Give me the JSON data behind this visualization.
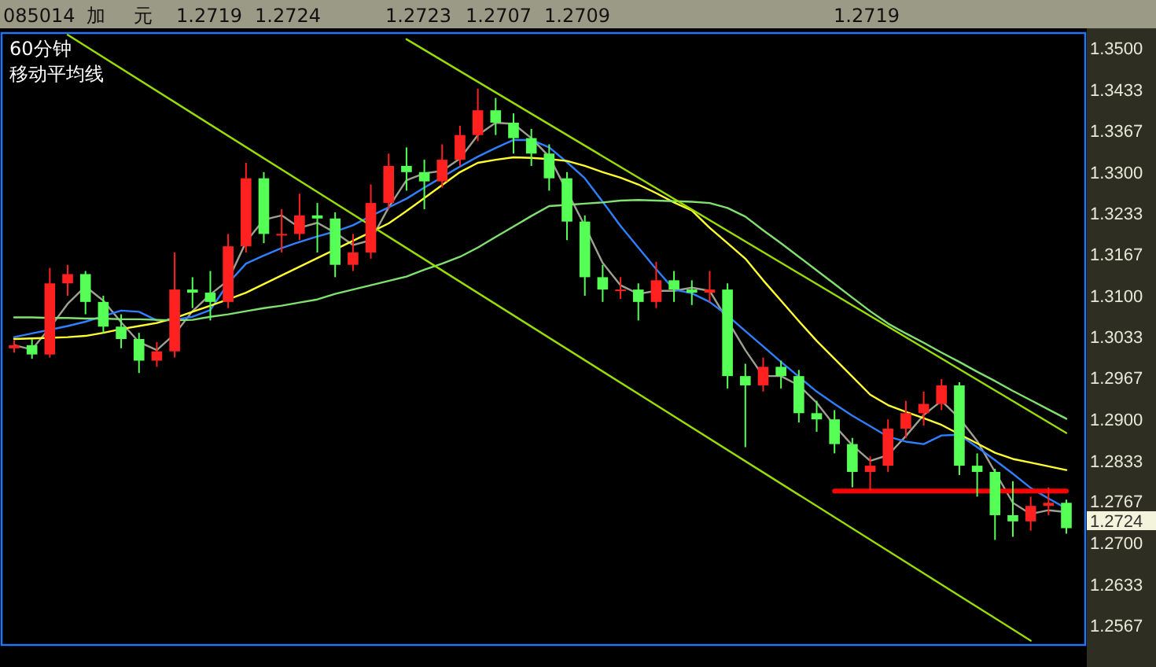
{
  "chart_data": {
    "type": "candlestick",
    "title": "60分钟",
    "subtitle": "移动平均线",
    "annotations": [
      "085014",
      "加",
      "元",
      "1.2719",
      "1.2724",
      "1.2723",
      "1.2707",
      "1.2709",
      "1.2719",
      "1.2724"
    ],
    "categories": [
      null,
      null,
      null,
      null,
      null,
      null,
      null,
      null,
      null,
      null,
      null,
      null,
      null,
      null,
      null,
      null,
      null,
      null,
      null,
      null,
      null,
      null,
      null,
      null,
      null,
      null,
      null,
      null,
      null,
      null,
      null,
      null,
      null,
      null,
      null,
      null,
      null,
      null,
      null,
      null,
      null,
      null,
      null,
      null,
      null,
      null,
      null,
      null,
      null,
      null,
      null,
      null,
      null,
      null,
      null,
      null,
      null,
      null,
      null,
      null
    ],
    "ylim": [
      1.2535,
      1.3525
    ],
    "yticks": [
      {
        "value": 1.35,
        "label": "1.3500"
      },
      {
        "value": 1.3433,
        "label": "1.3433"
      },
      {
        "value": 1.3367,
        "label": "1.3367"
      },
      {
        "value": 1.33,
        "label": "1.3300"
      },
      {
        "value": 1.3233,
        "label": "1.3233"
      },
      {
        "value": 1.3167,
        "label": "1.3167"
      },
      {
        "value": 1.31,
        "label": "1.3100"
      },
      {
        "value": 1.3033,
        "label": "1.3033"
      },
      {
        "value": 1.2967,
        "label": "1.2967"
      },
      {
        "value": 1.29,
        "label": "1.2900"
      },
      {
        "value": 1.2833,
        "label": "1.2833"
      },
      {
        "value": 1.2767,
        "label": "1.2767"
      },
      {
        "value": 1.27,
        "label": "1.2700"
      },
      {
        "value": 1.2633,
        "label": "1.2633"
      },
      {
        "value": 1.2567,
        "label": "1.2567"
      }
    ],
    "grid": false,
    "series": [
      {
        "type": "line",
        "color": "#a0a090",
        "values": [
          1.302,
          1.3013,
          1.3048,
          1.3087,
          1.3115,
          1.3092,
          1.3057,
          1.3025,
          1.3012,
          1.3038,
          1.3075,
          1.3102,
          1.3125,
          1.3187,
          1.3223,
          1.323,
          1.321,
          1.3218,
          1.3202,
          1.3182,
          1.319,
          1.3243,
          1.3287,
          1.3298,
          1.3302,
          1.3322,
          1.336,
          1.338,
          1.3378,
          1.3355,
          1.3325,
          null,
          1.3213,
          1.3153,
          1.3117,
          1.3103,
          1.3108,
          1.3108,
          1.3113,
          1.3108,
          null,
          1.3012,
          1.297,
          1.297,
          1.2955,
          1.2927,
          1.289,
          1.2858,
          1.2833,
          1.2842,
          1.2873,
          1.2907,
          1.293,
          1.2902,
          1.2865,
          null,
          1.2765,
          1.2747,
          1.2753,
          1.275
        ]
      },
      {
        "type": "line",
        "color": "#2f7fff",
        "values": [
          1.3033,
          1.3039,
          1.3045,
          1.3051,
          1.3058,
          1.3067,
          1.3076,
          1.3074,
          1.306,
          1.3061,
          1.3066,
          1.3077,
          1.312,
          1.3152,
          1.3165,
          1.3177,
          1.3187,
          1.3196,
          1.3204,
          1.3214,
          1.3229,
          1.3243,
          1.3257,
          1.3275,
          1.3292,
          1.3309,
          1.3325,
          1.3339,
          1.3352,
          1.3352,
          1.334,
          1.3316,
          1.329,
          1.3252,
          1.3213,
          1.3178,
          1.3143,
          1.311,
          1.3104,
          1.309,
          1.3068,
          1.3043,
          1.3018,
          1.2993,
          1.2969,
          1.2945,
          1.2925,
          1.2906,
          1.2889,
          1.2872,
          1.2864,
          1.286,
          1.2874,
          1.2875,
          1.2855,
          1.2834,
          1.2812,
          1.2789,
          1.2772,
          1.2756
        ]
      },
      {
        "type": "line",
        "color": "#ffff30",
        "values": [
          1.303,
          1.3031,
          1.3032,
          1.3033,
          1.3035,
          1.304,
          1.3046,
          1.3051,
          1.3056,
          1.3064,
          1.3074,
          1.3084,
          1.3094,
          1.3105,
          1.3119,
          1.3133,
          1.3147,
          1.3161,
          1.3175,
          1.3189,
          1.3203,
          1.3217,
          1.3237,
          1.3258,
          1.3279,
          1.33,
          1.3315,
          1.332,
          1.3324,
          1.3323,
          1.3321,
          1.3318,
          1.331,
          1.33,
          1.3291,
          1.328,
          1.3266,
          1.3251,
          1.3238,
          1.321,
          1.3185,
          1.316,
          1.3125,
          1.3092,
          1.3059,
          1.3027,
          1.2998,
          1.2969,
          1.294,
          1.2923,
          1.2912,
          1.2902,
          1.2891,
          1.2876,
          1.2861,
          1.2846,
          1.2836,
          1.283,
          1.2824,
          1.2818
        ]
      },
      {
        "type": "line",
        "color": "#80e070",
        "values": [
          1.3065,
          1.3065,
          1.3064,
          1.3064,
          1.3063,
          1.3063,
          1.3062,
          1.3062,
          1.3061,
          1.306,
          1.3061,
          1.3066,
          1.307,
          1.3075,
          1.308,
          1.3084,
          1.3089,
          1.3094,
          1.3103,
          1.311,
          1.3117,
          1.3124,
          1.3131,
          1.3142,
          1.3152,
          1.3163,
          1.3178,
          1.3195,
          1.3212,
          1.3229,
          1.3245,
          1.3247,
          1.3249,
          1.3251,
          1.3254,
          1.3255,
          1.3254,
          1.3253,
          1.3252,
          1.325,
          1.3242,
          1.3228,
          1.3206,
          1.3185,
          1.3163,
          1.3141,
          1.3119,
          1.3097,
          1.3075,
          1.3055,
          1.3039,
          1.3024,
          1.3008,
          1.2993,
          1.2977,
          1.2962,
          1.2946,
          1.2931,
          1.2916,
          1.2901
        ]
      },
      {
        "type": "line",
        "color": "#99dd00",
        "values": [
          null,
          null,
          null,
          null,
          null,
          null,
          null,
          null,
          null,
          null,
          null,
          null,
          null,
          null,
          null,
          null,
          null,
          null,
          null,
          null,
          null,
          null,
          1.3515,
          null,
          null,
          null,
          null,
          null,
          null,
          null,
          null,
          null,
          null,
          null,
          null,
          null,
          null,
          null,
          null,
          null,
          null,
          null,
          null,
          null,
          null,
          null,
          null,
          null,
          null,
          null,
          null,
          null,
          null,
          null,
          null,
          null,
          null,
          null,
          null,
          1.2878
        ]
      },
      {
        "type": "line",
        "color": "#99dd00",
        "values": [
          null,
          null,
          null,
          1.3522,
          null,
          null,
          null,
          null,
          null,
          null,
          null,
          null,
          null,
          null,
          null,
          null,
          null,
          null,
          null,
          null,
          null,
          null,
          null,
          null,
          null,
          null,
          null,
          null,
          null,
          null,
          null,
          null,
          null,
          null,
          null,
          null,
          null,
          null,
          null,
          null,
          null,
          null,
          null,
          null,
          null,
          null,
          null,
          null,
          null,
          null,
          null,
          null,
          null,
          null,
          null,
          null,
          null,
          1.2542,
          null,
          null
        ]
      },
      {
        "type": "line",
        "color": "#ff0000",
        "values": [
          null,
          null,
          null,
          null,
          null,
          null,
          null,
          null,
          null,
          null,
          null,
          null,
          null,
          null,
          null,
          null,
          null,
          null,
          null,
          null,
          null,
          null,
          null,
          null,
          null,
          null,
          null,
          null,
          null,
          null,
          null,
          null,
          null,
          null,
          null,
          null,
          null,
          null,
          null,
          null,
          null,
          null,
          null,
          null,
          null,
          null,
          1.2784,
          null,
          null,
          null,
          null,
          null,
          null,
          null,
          null,
          null,
          null,
          null,
          null,
          1.2784
        ]
      },
      {
        "ohlc": [
          [
            1.3015,
            1.3028,
            1.3008,
            1.302
          ],
          [
            1.302,
            1.303,
            1.2998,
            1.3005
          ],
          [
            1.3005,
            1.3145,
            1.3,
            1.312
          ],
          [
            1.312,
            1.315,
            1.31,
            1.3135
          ],
          [
            1.3135,
            1.314,
            1.307,
            1.309
          ],
          [
            1.309,
            1.31,
            1.304,
            1.305
          ],
          [
            1.305,
            1.307,
            1.3015,
            1.303
          ],
          [
            1.303,
            1.304,
            1.2975,
            1.2995
          ],
          [
            1.2995,
            1.3025,
            1.2985,
            1.301
          ],
          [
            1.301,
            1.317,
            1.3,
            1.311
          ],
          [
            1.311,
            1.313,
            1.308,
            1.3105
          ],
          [
            1.3105,
            1.314,
            1.306,
            1.309
          ],
          [
            1.309,
            1.32,
            1.308,
            1.318
          ],
          [
            1.318,
            1.3315,
            1.317,
            1.329
          ],
          [
            1.329,
            1.33,
            1.3185,
            1.32
          ],
          [
            1.32,
            1.324,
            1.317,
            1.32
          ],
          [
            1.32,
            1.3265,
            1.319,
            1.323
          ],
          [
            1.323,
            1.325,
            1.317,
            1.3225
          ],
          [
            1.3225,
            1.3235,
            1.313,
            1.315
          ],
          [
            1.315,
            1.32,
            1.314,
            1.317
          ],
          [
            1.317,
            1.328,
            1.316,
            1.325
          ],
          [
            1.325,
            1.333,
            1.324,
            1.331
          ],
          [
            1.331,
            1.334,
            1.327,
            1.33
          ],
          [
            1.33,
            1.332,
            1.324,
            1.3285
          ],
          [
            1.3285,
            1.3345,
            1.3275,
            1.332
          ],
          [
            1.332,
            1.3375,
            1.331,
            1.336
          ],
          [
            1.336,
            1.3435,
            1.335,
            1.34
          ],
          [
            1.34,
            1.342,
            1.336,
            1.338
          ],
          [
            1.338,
            1.3395,
            1.333,
            1.3355
          ],
          [
            1.3355,
            1.337,
            1.331,
            1.333
          ],
          [
            1.333,
            1.3345,
            1.327,
            1.329
          ],
          [
            1.329,
            1.33,
            1.319,
            1.322
          ],
          [
            1.322,
            1.323,
            1.31,
            1.313
          ],
          [
            1.313,
            1.315,
            1.309,
            1.311
          ],
          [
            1.311,
            1.313,
            1.3095,
            1.311
          ],
          [
            1.311,
            1.312,
            1.306,
            1.309
          ],
          [
            1.309,
            1.3155,
            1.308,
            1.3125
          ],
          [
            1.3125,
            1.314,
            1.309,
            1.311
          ],
          [
            1.311,
            1.3125,
            1.3085,
            1.3105
          ],
          [
            1.3105,
            1.314,
            1.309,
            1.311
          ],
          [
            1.311,
            1.312,
            1.295,
            1.297
          ],
          [
            1.297,
            1.299,
            1.2855,
            1.2955
          ],
          [
            1.2955,
            1.3,
            1.2945,
            1.2985
          ],
          [
            1.2985,
            1.2995,
            1.295,
            1.297
          ],
          [
            1.297,
            1.298,
            1.2895,
            1.291
          ],
          [
            1.291,
            1.293,
            1.288,
            1.29
          ],
          [
            1.29,
            1.2915,
            1.2845,
            1.286
          ],
          [
            1.286,
            1.287,
            1.279,
            1.2815
          ],
          [
            1.2815,
            1.284,
            1.2785,
            1.2825
          ],
          [
            1.2825,
            1.29,
            1.2815,
            1.2885
          ],
          [
            1.2885,
            1.293,
            1.287,
            1.291
          ],
          [
            1.291,
            1.2945,
            1.289,
            1.2925
          ],
          [
            1.2925,
            1.2965,
            1.2915,
            1.2955
          ],
          [
            1.2955,
            1.296,
            1.281,
            1.2825
          ],
          [
            1.2825,
            1.2845,
            1.2775,
            1.2815
          ],
          [
            1.2815,
            1.282,
            1.2705,
            1.2745
          ],
          [
            1.2745,
            1.28,
            1.271,
            1.2735
          ],
          [
            1.2735,
            1.2775,
            1.272,
            1.276
          ],
          [
            1.276,
            1.279,
            1.2745,
            1.2765
          ],
          [
            1.2765,
            1.277,
            1.2715,
            1.2724
          ]
        ]
      }
    ]
  }
}
